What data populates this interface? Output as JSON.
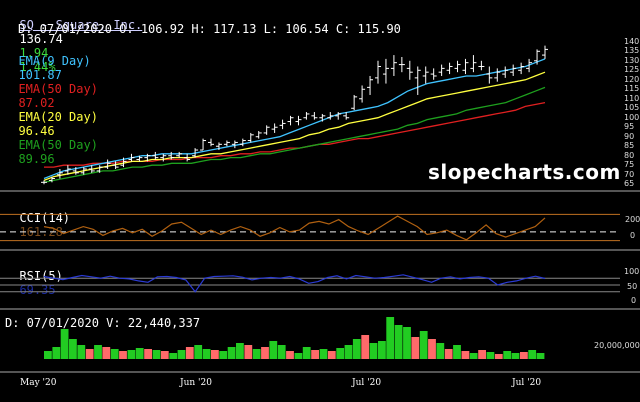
{
  "header": {
    "symbol": "SQ - Square, Inc.",
    "price": "136.74",
    "change": "1.94",
    "change_pct": "1.44%",
    "ohlc_line": "D: 07/01/2020 O: 106.92 H: 117.13 L: 106.54 C: 115.90"
  },
  "ema_legend": [
    {
      "label": "EMA(9 Day)",
      "value": "101.87",
      "color": "#3fc3ff"
    },
    {
      "label": "EMA(50 Day)",
      "value": "87.02",
      "color": "#e02020"
    },
    {
      "label": "EMA(20 Day)",
      "value": "96.46",
      "color": "#ffff40"
    },
    {
      "label": "EMA(50 Day)",
      "value": "89.96",
      "color": "#1ea01e"
    }
  ],
  "watermark": "slopecharts.com",
  "colors": {
    "candle": "#ffffff",
    "ema9": "#3fc3ff",
    "ema20": "#ffff40",
    "ema50_green": "#1ea01e",
    "ema50_red": "#e02020",
    "cci": "#b06010",
    "rsi": "#2b3bd6",
    "vol_up": "#22cc22",
    "vol_down": "#ff6a6a"
  },
  "cci": {
    "label": "CCI(14)",
    "value": "161.28",
    "ticks": [
      "200",
      "0"
    ]
  },
  "rsi": {
    "label": "RSI(5)",
    "value": "69.35",
    "ticks": [
      "100",
      "50",
      "0"
    ]
  },
  "volume": {
    "label": "D: 07/01/2020 V: 22,440,337",
    "tick": "20,000,000"
  },
  "chart_data": {
    "type": "candlestick",
    "y_ticks": [
      "140",
      "135",
      "130",
      "125",
      "120",
      "115",
      "110",
      "105",
      "100",
      "95",
      "90",
      "85",
      "80",
      "75",
      "70",
      "65"
    ],
    "ylim": [
      63,
      142
    ],
    "x_labels": [
      "May '20",
      "Jun '20",
      "Jul '20",
      "Jul '20"
    ],
    "ohlc": [
      [
        66,
        67,
        65,
        66
      ],
      [
        67,
        69,
        66,
        68
      ],
      [
        70,
        73,
        68,
        71
      ],
      [
        72,
        75,
        70,
        73
      ],
      [
        72,
        74,
        70,
        71
      ],
      [
        71,
        74,
        70,
        73
      ],
      [
        73,
        75,
        71,
        72
      ],
      [
        72,
        75,
        71,
        74
      ],
      [
        74,
        78,
        73,
        76
      ],
      [
        75,
        77,
        73,
        74
      ],
      [
        75,
        79,
        74,
        77
      ],
      [
        78,
        81,
        77,
        79
      ],
      [
        78,
        80,
        77,
        79
      ],
      [
        79,
        81,
        77,
        80
      ],
      [
        80,
        82,
        78,
        79
      ],
      [
        79,
        81,
        77,
        80
      ],
      [
        80,
        82,
        78,
        79
      ],
      [
        80,
        82,
        79,
        81
      ],
      [
        79,
        81,
        77,
        78
      ],
      [
        80,
        84,
        79,
        83
      ],
      [
        83,
        89,
        83,
        88
      ],
      [
        87,
        89,
        85,
        86
      ],
      [
        85,
        87,
        83,
        86
      ],
      [
        86,
        88,
        85,
        87
      ],
      [
        86,
        88,
        84,
        87
      ],
      [
        86,
        89,
        85,
        88
      ],
      [
        88,
        92,
        87,
        91
      ],
      [
        90,
        93,
        89,
        92
      ],
      [
        92,
        96,
        91,
        95
      ],
      [
        94,
        97,
        92,
        95
      ],
      [
        96,
        99,
        94,
        97
      ],
      [
        98,
        101,
        96,
        100
      ],
      [
        98,
        101,
        96,
        99
      ],
      [
        100,
        103,
        99,
        102
      ],
      [
        101,
        103,
        99,
        100
      ],
      [
        100,
        102,
        98,
        101
      ],
      [
        100,
        103,
        99,
        101
      ],
      [
        101,
        103,
        99,
        102
      ],
      [
        101,
        103,
        99,
        100
      ],
      [
        105,
        112,
        104,
        111
      ],
      [
        110,
        117,
        108,
        115
      ],
      [
        116,
        122,
        112,
        120
      ],
      [
        121,
        130,
        118,
        127
      ],
      [
        123,
        131,
        118,
        126
      ],
      [
        126,
        133,
        122,
        129
      ],
      [
        128,
        132,
        124,
        128
      ],
      [
        126,
        130,
        120,
        124
      ],
      [
        121,
        127,
        112,
        125
      ],
      [
        122,
        127,
        118,
        124
      ],
      [
        123,
        126,
        120,
        122
      ],
      [
        124,
        128,
        122,
        126
      ],
      [
        125,
        129,
        123,
        127
      ],
      [
        126,
        130,
        124,
        128
      ],
      [
        125,
        131,
        123,
        129
      ],
      [
        126,
        133,
        124,
        129
      ],
      [
        127,
        130,
        125,
        127
      ],
      [
        123,
        127,
        118,
        121
      ],
      [
        121,
        126,
        119,
        124
      ],
      [
        123,
        127,
        121,
        125
      ],
      [
        124,
        128,
        122,
        126
      ],
      [
        125,
        129,
        123,
        127
      ],
      [
        126,
        131,
        124,
        129
      ],
      [
        130,
        136,
        128,
        135
      ],
      [
        133,
        138,
        131,
        136
      ]
    ],
    "ema9": [
      68,
      70,
      72,
      73,
      74,
      75,
      76,
      77,
      78,
      79,
      80,
      80,
      81,
      81,
      81,
      81,
      82,
      83,
      84,
      85,
      86,
      87,
      88,
      89,
      90,
      92,
      94,
      96,
      98,
      100,
      102,
      103,
      104,
      105,
      106,
      108,
      111,
      114,
      116,
      118,
      119,
      120,
      121,
      122,
      122,
      123,
      124,
      125,
      126,
      127,
      129,
      131
    ],
    "ema20": [
      67,
      69,
      70,
      71,
      72,
      73,
      74,
      75,
      76,
      77,
      77,
      78,
      78,
      79,
      79,
      79,
      80,
      81,
      81,
      82,
      83,
      84,
      85,
      86,
      87,
      88,
      89,
      91,
      92,
      94,
      95,
      97,
      98,
      99,
      100,
      102,
      104,
      106,
      108,
      110,
      111,
      112,
      113,
      114,
      115,
      116,
      117,
      118,
      119,
      120,
      122,
      124
    ],
    "ema50_green": [
      66,
      67,
      68,
      69,
      70,
      71,
      72,
      72,
      73,
      74,
      74,
      75,
      75,
      76,
      76,
      76,
      77,
      78,
      78,
      79,
      79,
      80,
      81,
      81,
      82,
      83,
      84,
      85,
      86,
      87,
      88,
      89,
      90,
      91,
      92,
      93,
      94,
      96,
      97,
      99,
      100,
      101,
      102,
      104,
      105,
      106,
      107,
      108,
      110,
      112,
      114,
      116
    ],
    "ema50_red": [
      74,
      74,
      75,
      75,
      75,
      76,
      76,
      76,
      77,
      77,
      77,
      77,
      78,
      78,
      78,
      79,
      79,
      79,
      80,
      80,
      81,
      81,
      82,
      82,
      83,
      84,
      84,
      85,
      86,
      86,
      87,
      88,
      89,
      89,
      90,
      91,
      92,
      93,
      94,
      95,
      96,
      97,
      98,
      99,
      100,
      101,
      102,
      103,
      104,
      106,
      107,
      108
    ],
    "cci_values": [
      60,
      40,
      -20,
      20,
      60,
      30,
      -40,
      10,
      40,
      -10,
      30,
      -50,
      10,
      90,
      110,
      40,
      -30,
      20,
      -30,
      20,
      60,
      20,
      -50,
      -10,
      50,
      0,
      20,
      100,
      120,
      90,
      140,
      60,
      10,
      -30,
      40,
      110,
      180,
      120,
      60,
      -30,
      -10,
      20,
      -40,
      -90,
      -10,
      80,
      -20,
      -60,
      -20,
      20,
      60,
      160
    ],
    "rsi_values": [
      75,
      70,
      66,
      72,
      78,
      74,
      70,
      76,
      70,
      68,
      62,
      58,
      74,
      75,
      72,
      65,
      30,
      70,
      75,
      76,
      77,
      73,
      65,
      70,
      72,
      70,
      75,
      68,
      55,
      60,
      72,
      77,
      68,
      78,
      74,
      70,
      72,
      76,
      80,
      73,
      66,
      58,
      70,
      74,
      68,
      72,
      74,
      70,
      50,
      58,
      62,
      70,
      76,
      69
    ],
    "volume": [
      [
        8,
        1
      ],
      [
        12,
        1
      ],
      [
        30,
        1
      ],
      [
        20,
        1
      ],
      [
        14,
        1
      ],
      [
        10,
        0
      ],
      [
        14,
        1
      ],
      [
        12,
        0
      ],
      [
        10,
        1
      ],
      [
        8,
        0
      ],
      [
        9,
        1
      ],
      [
        11,
        1
      ],
      [
        10,
        0
      ],
      [
        9,
        1
      ],
      [
        8,
        0
      ],
      [
        6,
        1
      ],
      [
        9,
        1
      ],
      [
        12,
        0
      ],
      [
        14,
        1
      ],
      [
        10,
        1
      ],
      [
        9,
        0
      ],
      [
        8,
        1
      ],
      [
        12,
        1
      ],
      [
        16,
        1
      ],
      [
        14,
        0
      ],
      [
        10,
        1
      ],
      [
        12,
        0
      ],
      [
        18,
        1
      ],
      [
        14,
        1
      ],
      [
        8,
        0
      ],
      [
        6,
        1
      ],
      [
        12,
        1
      ],
      [
        9,
        0
      ],
      [
        10,
        1
      ],
      [
        8,
        0
      ],
      [
        11,
        1
      ],
      [
        14,
        1
      ],
      [
        20,
        1
      ],
      [
        24,
        0
      ],
      [
        16,
        1
      ],
      [
        18,
        1
      ],
      [
        42,
        1
      ],
      [
        34,
        1
      ],
      [
        32,
        1
      ],
      [
        22,
        0
      ],
      [
        28,
        1
      ],
      [
        20,
        0
      ],
      [
        16,
        1
      ],
      [
        10,
        0
      ],
      [
        14,
        1
      ],
      [
        8,
        0
      ],
      [
        6,
        1
      ],
      [
        9,
        0
      ],
      [
        7,
        1
      ],
      [
        5,
        0
      ],
      [
        8,
        1
      ],
      [
        6,
        1
      ],
      [
        7,
        0
      ],
      [
        9,
        1
      ],
      [
        6,
        1
      ]
    ]
  }
}
